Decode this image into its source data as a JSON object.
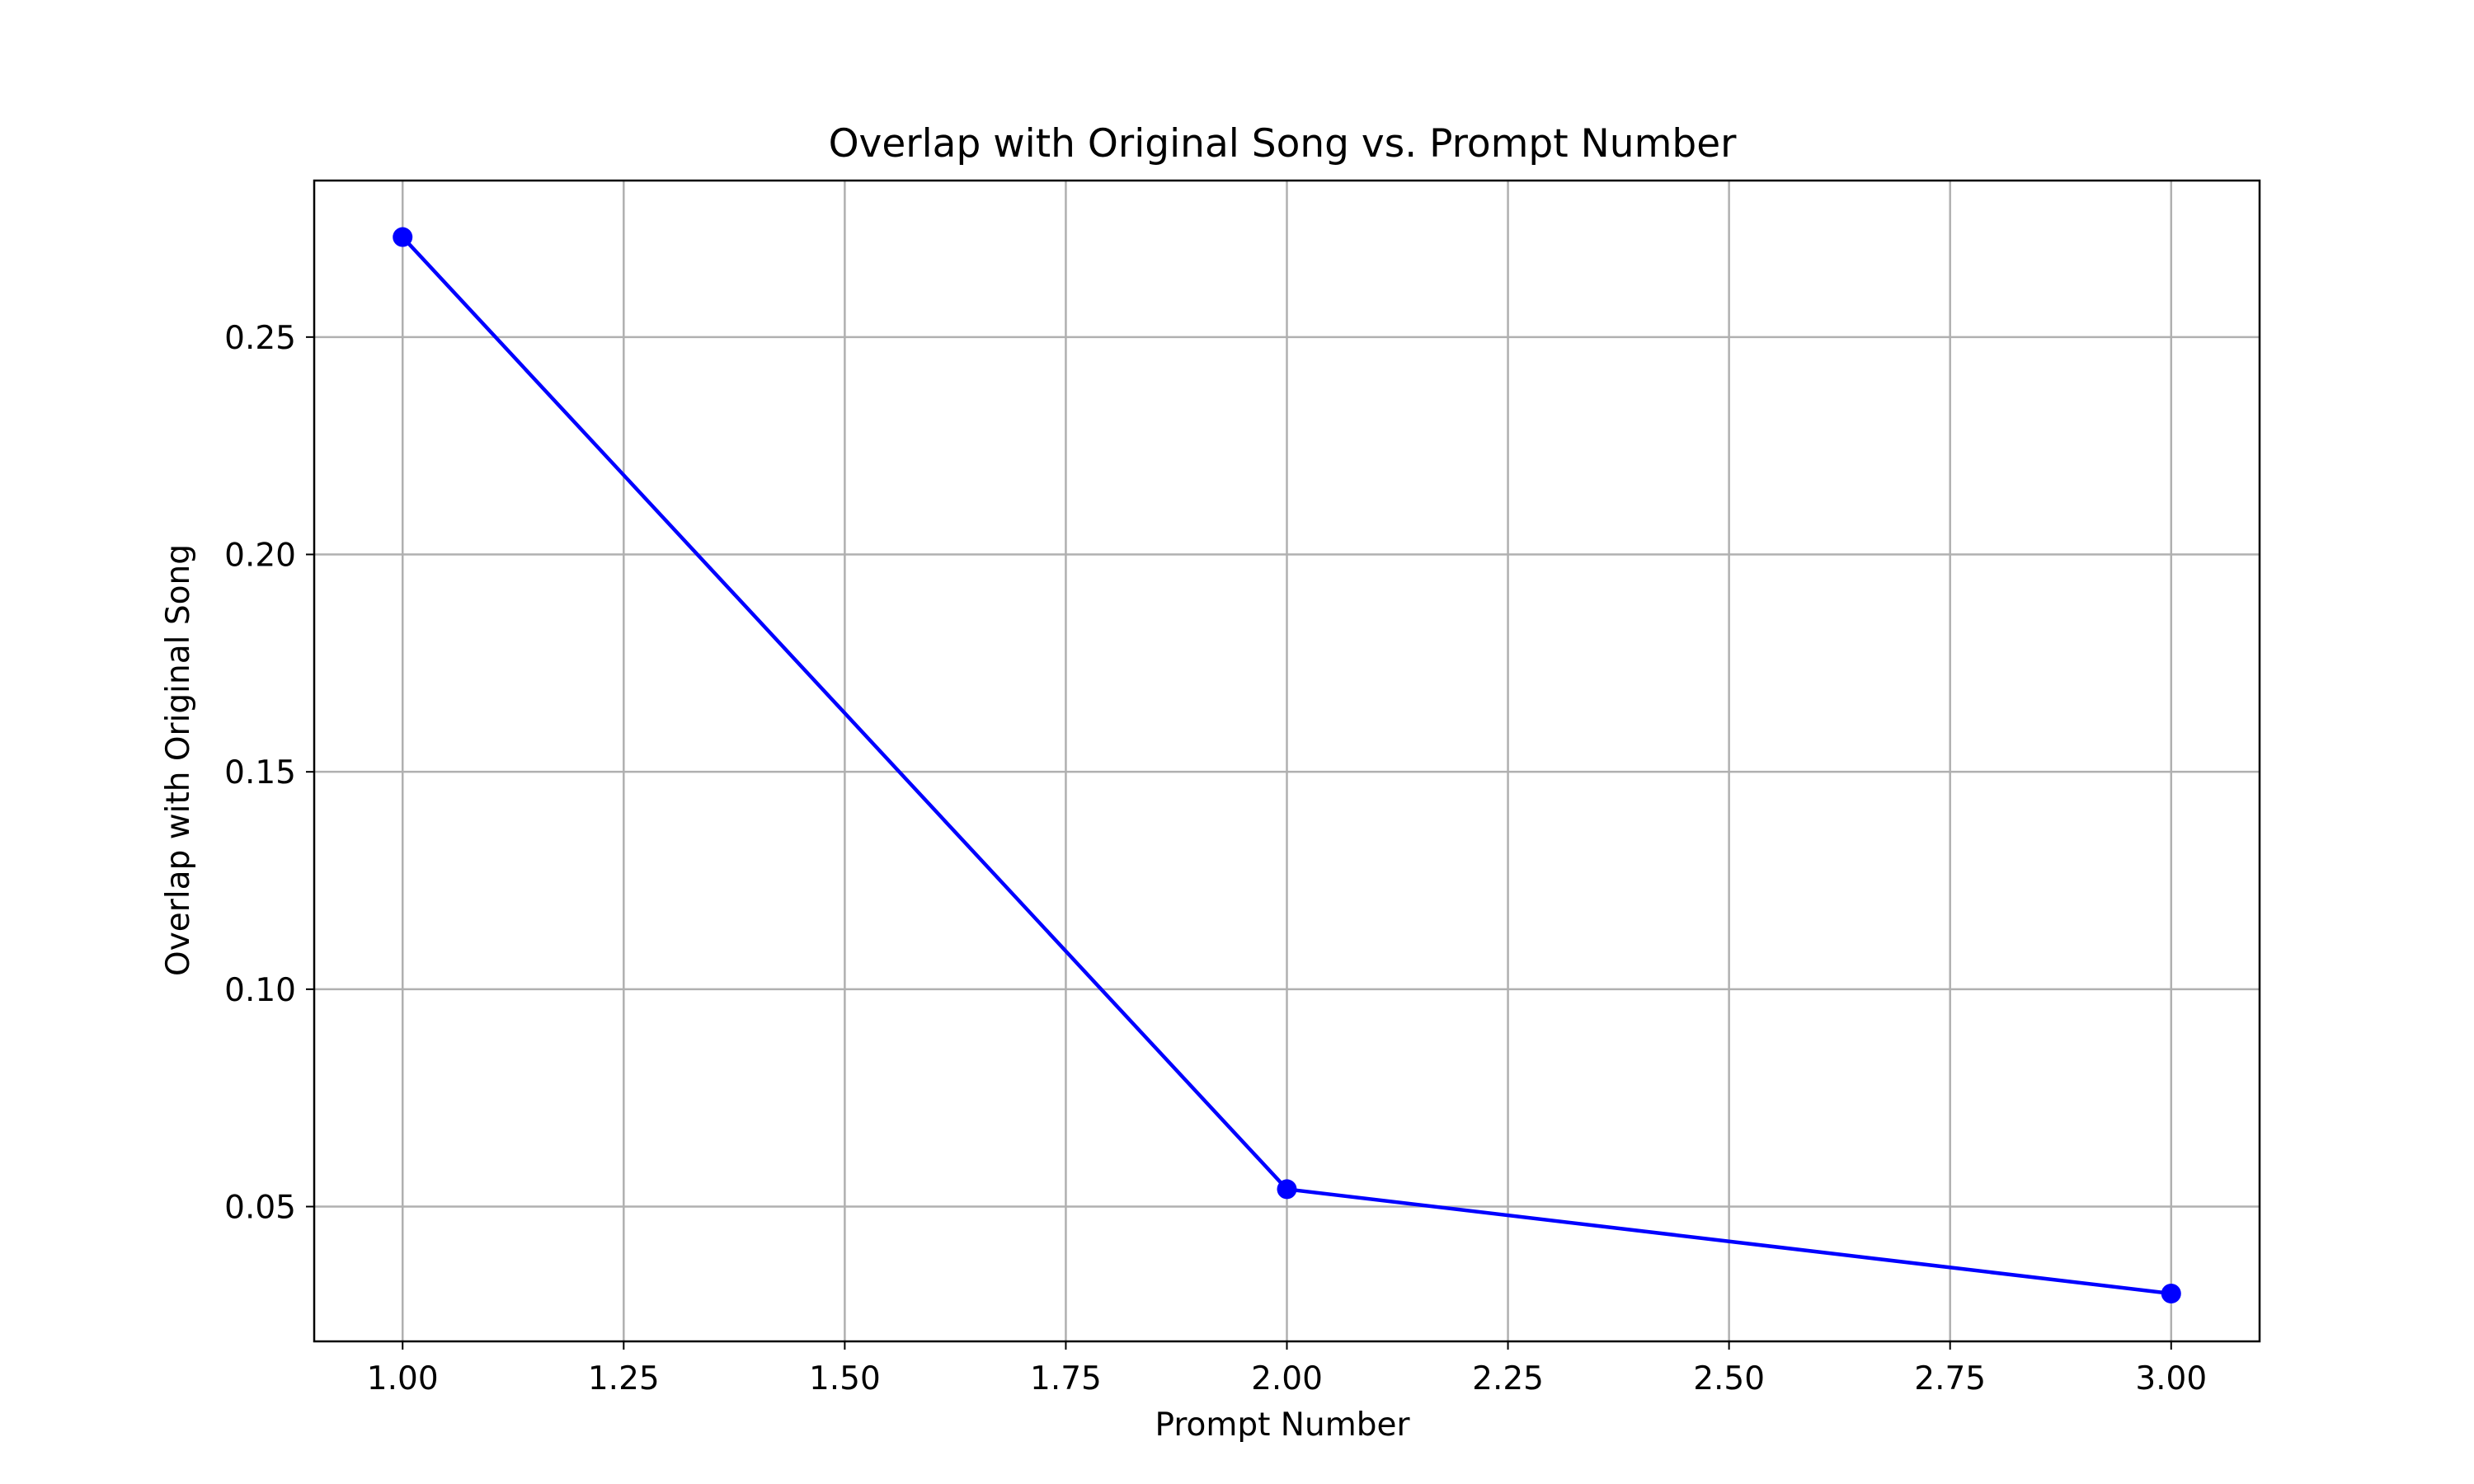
{
  "chart_data": {
    "type": "line",
    "title": "Overlap with Original Song vs. Prompt Number",
    "xlabel": "Prompt Number",
    "ylabel": "Overlap with Original Song",
    "x": [
      1,
      2,
      3
    ],
    "series": [
      {
        "values": [
          0.273,
          0.054,
          0.03
        ],
        "color": "#0000ff",
        "marker": "circle"
      }
    ],
    "xlim": [
      0.9,
      3.1
    ],
    "ylim": [
      0.019,
      0.286
    ],
    "xticks": [
      1.0,
      1.25,
      1.5,
      1.75,
      2.0,
      2.25,
      2.5,
      2.75,
      3.0
    ],
    "xtick_labels": [
      "1.00",
      "1.25",
      "1.50",
      "1.75",
      "2.00",
      "2.25",
      "2.50",
      "2.75",
      "3.00"
    ],
    "yticks": [
      0.05,
      0.1,
      0.15,
      0.2,
      0.25
    ],
    "ytick_labels": [
      "0.05",
      "0.10",
      "0.15",
      "0.20",
      "0.25"
    ],
    "grid": true,
    "grid_color": "#b0b0b0",
    "legend": "none"
  }
}
